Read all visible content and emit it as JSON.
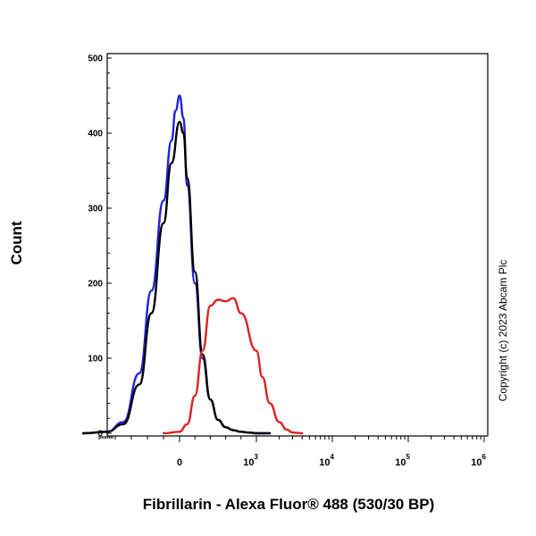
{
  "chart_data": {
    "type": "line",
    "title": "",
    "xlabel": "Fibrillarin - Alexa Fluor® 488 (530/30 BP)",
    "ylabel": "Count",
    "ylim": [
      0,
      500
    ],
    "x_scale": "biexponential",
    "y_ticks": [
      0,
      100,
      200,
      300,
      400,
      500
    ],
    "x_tick_labels": [
      {
        "base": "0",
        "exp": ""
      },
      {
        "base": "10",
        "exp": "3"
      },
      {
        "base": "10",
        "exp": "4"
      },
      {
        "base": "10",
        "exp": "5"
      },
      {
        "base": "10",
        "exp": "6"
      }
    ],
    "grid": false,
    "legend": "none",
    "annotation": "Copyright (c) 2023 Abcam Plc",
    "series": [
      {
        "color": "#2222dd",
        "x": [
          -1200,
          -900,
          -700,
          -500,
          -350,
          -200,
          -100,
          -50,
          0,
          50,
          100,
          200,
          300,
          400,
          500,
          600,
          700,
          800,
          900,
          1000,
          1500
        ],
        "values": [
          0,
          2,
          15,
          80,
          190,
          310,
          390,
          430,
          450,
          420,
          330,
          200,
          100,
          45,
          18,
          8,
          4,
          2,
          1,
          0,
          0
        ]
      },
      {
        "color": "#000000",
        "x": [
          -1200,
          -900,
          -700,
          -500,
          -350,
          -200,
          -100,
          0,
          50,
          100,
          200,
          300,
          400,
          500,
          600,
          700,
          800,
          900,
          1000,
          1500
        ],
        "values": [
          0,
          2,
          12,
          65,
          160,
          280,
          360,
          415,
          400,
          340,
          215,
          105,
          45,
          18,
          8,
          4,
          2,
          1,
          0,
          0
        ]
      },
      {
        "color": "#dd2222",
        "x": [
          -200,
          0,
          100,
          200,
          300,
          400,
          500,
          600,
          700,
          800,
          1000,
          1200,
          1500,
          2000,
          2500,
          3000,
          4000
        ],
        "values": [
          0,
          2,
          12,
          50,
          110,
          170,
          178,
          176,
          180,
          160,
          110,
          75,
          40,
          15,
          5,
          1,
          0
        ]
      }
    ]
  }
}
